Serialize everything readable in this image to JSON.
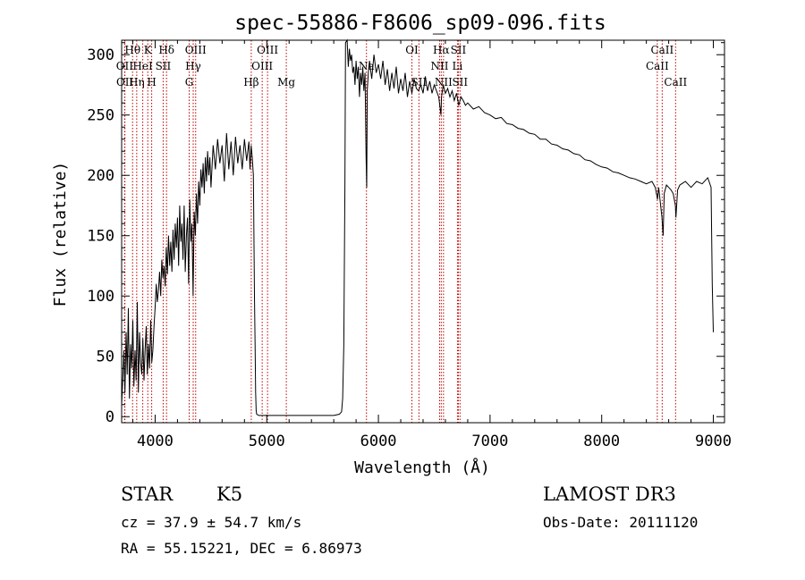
{
  "chart_data": {
    "type": "line",
    "title": "spec-55886-F8606_sp09-096.fits",
    "xlabel": "Wavelength (Å)",
    "ylabel": "Flux (relative)",
    "xlim": [
      3700,
      9100
    ],
    "ylim": [
      -5,
      312
    ],
    "xticks": [
      4000,
      5000,
      6000,
      7000,
      8000,
      9000
    ],
    "yticks": [
      0,
      50,
      100,
      150,
      200,
      250,
      300
    ],
    "series": [
      {
        "name": "flux",
        "points": [
          [
            3700,
            10
          ],
          [
            3710,
            30
          ],
          [
            3720,
            55
          ],
          [
            3730,
            20
          ],
          [
            3740,
            70
          ],
          [
            3750,
            35
          ],
          [
            3760,
            90
          ],
          [
            3770,
            15
          ],
          [
            3780,
            60
          ],
          [
            3790,
            40
          ],
          [
            3800,
            80
          ],
          [
            3810,
            25
          ],
          [
            3820,
            55
          ],
          [
            3830,
            30
          ],
          [
            3840,
            95
          ],
          [
            3850,
            20
          ],
          [
            3860,
            70
          ],
          [
            3870,
            45
          ],
          [
            3880,
            35
          ],
          [
            3890,
            65
          ],
          [
            3900,
            30
          ],
          [
            3910,
            55
          ],
          [
            3920,
            75
          ],
          [
            3930,
            35
          ],
          [
            3940,
            60
          ],
          [
            3950,
            40
          ],
          [
            3960,
            80
          ],
          [
            3970,
            45
          ],
          [
            3980,
            55
          ],
          [
            3990,
            75
          ],
          [
            4000,
            90
          ],
          [
            4010,
            110
          ],
          [
            4020,
            95
          ],
          [
            4030,
            105
          ],
          [
            4040,
            120
          ],
          [
            4050,
            100
          ],
          [
            4060,
            130
          ],
          [
            4070,
            115
          ],
          [
            4080,
            125
          ],
          [
            4090,
            108
          ],
          [
            4100,
            140
          ],
          [
            4110,
            118
          ],
          [
            4120,
            150
          ],
          [
            4130,
            125
          ],
          [
            4140,
            145
          ],
          [
            4150,
            120
          ],
          [
            4160,
            155
          ],
          [
            4170,
            130
          ],
          [
            4180,
            160
          ],
          [
            4190,
            140
          ],
          [
            4200,
            165
          ],
          [
            4210,
            125
          ],
          [
            4220,
            175
          ],
          [
            4230,
            145
          ],
          [
            4240,
            160
          ],
          [
            4250,
            130
          ],
          [
            4260,
            175
          ],
          [
            4270,
            120
          ],
          [
            4280,
            150
          ],
          [
            4290,
            165
          ],
          [
            4300,
            110
          ],
          [
            4310,
            180
          ],
          [
            4320,
            145
          ],
          [
            4330,
            160
          ],
          [
            4340,
            100
          ],
          [
            4350,
            170
          ],
          [
            4360,
            150
          ],
          [
            4370,
            185
          ],
          [
            4380,
            160
          ],
          [
            4390,
            195
          ],
          [
            4400,
            175
          ],
          [
            4410,
            205
          ],
          [
            4420,
            190
          ],
          [
            4430,
            210
          ],
          [
            4440,
            185
          ],
          [
            4450,
            215
          ],
          [
            4460,
            195
          ],
          [
            4470,
            220
          ],
          [
            4480,
            200
          ],
          [
            4490,
            215
          ],
          [
            4500,
            190
          ],
          [
            4520,
            225
          ],
          [
            4540,
            205
          ],
          [
            4560,
            230
          ],
          [
            4580,
            210
          ],
          [
            4600,
            225
          ],
          [
            4620,
            195
          ],
          [
            4640,
            235
          ],
          [
            4660,
            205
          ],
          [
            4680,
            228
          ],
          [
            4700,
            200
          ],
          [
            4720,
            232
          ],
          [
            4740,
            210
          ],
          [
            4760,
            225
          ],
          [
            4780,
            205
          ],
          [
            4800,
            230
          ],
          [
            4820,
            212
          ],
          [
            4840,
            228
          ],
          [
            4850,
            205
          ],
          [
            4860,
            225
          ],
          [
            4870,
            215
          ],
          [
            4880,
            200
          ],
          [
            4885,
            150
          ],
          [
            4890,
            100
          ],
          [
            4895,
            60
          ],
          [
            4900,
            20
          ],
          [
            4905,
            5
          ],
          [
            4910,
            2
          ],
          [
            4930,
            1
          ],
          [
            5000,
            1
          ],
          [
            5100,
            1
          ],
          [
            5200,
            1
          ],
          [
            5300,
            1
          ],
          [
            5400,
            1
          ],
          [
            5500,
            1
          ],
          [
            5600,
            1
          ],
          [
            5650,
            2
          ],
          [
            5670,
            4
          ],
          [
            5680,
            15
          ],
          [
            5690,
            60
          ],
          [
            5700,
            190
          ],
          [
            5705,
            310
          ],
          [
            5720,
            312
          ],
          [
            5730,
            290
          ],
          [
            5740,
            305
          ],
          [
            5750,
            295
          ],
          [
            5760,
            300
          ],
          [
            5770,
            285
          ],
          [
            5780,
            290
          ],
          [
            5790,
            275
          ],
          [
            5800,
            295
          ],
          [
            5810,
            280
          ],
          [
            5820,
            290
          ],
          [
            5830,
            265
          ],
          [
            5840,
            285
          ],
          [
            5850,
            275
          ],
          [
            5860,
            290
          ],
          [
            5870,
            270
          ],
          [
            5880,
            285
          ],
          [
            5890,
            215
          ],
          [
            5895,
            190
          ],
          [
            5900,
            270
          ],
          [
            5910,
            285
          ],
          [
            5920,
            295
          ],
          [
            5940,
            280
          ],
          [
            5960,
            300
          ],
          [
            5980,
            285
          ],
          [
            6000,
            292
          ],
          [
            6020,
            280
          ],
          [
            6040,
            295
          ],
          [
            6060,
            275
          ],
          [
            6080,
            288
          ],
          [
            6100,
            270
          ],
          [
            6120,
            285
          ],
          [
            6140,
            272
          ],
          [
            6160,
            290
          ],
          [
            6180,
            268
          ],
          [
            6200,
            280
          ],
          [
            6220,
            270
          ],
          [
            6240,
            285
          ],
          [
            6260,
            265
          ],
          [
            6280,
            278
          ],
          [
            6300,
            268
          ],
          [
            6320,
            280
          ],
          [
            6340,
            272
          ],
          [
            6360,
            270
          ],
          [
            6380,
            275
          ],
          [
            6400,
            268
          ],
          [
            6420,
            282
          ],
          [
            6440,
            270
          ],
          [
            6460,
            278
          ],
          [
            6480,
            268
          ],
          [
            6500,
            275
          ],
          [
            6520,
            270
          ],
          [
            6540,
            265
          ],
          [
            6560,
            250
          ],
          [
            6565,
            265
          ],
          [
            6580,
            275
          ],
          [
            6600,
            268
          ],
          [
            6620,
            272
          ],
          [
            6640,
            265
          ],
          [
            6660,
            270
          ],
          [
            6680,
            262
          ],
          [
            6700,
            268
          ],
          [
            6720,
            258
          ],
          [
            6740,
            265
          ],
          [
            6760,
            262
          ],
          [
            6780,
            258
          ],
          [
            6800,
            260
          ],
          [
            6850,
            255
          ],
          [
            6900,
            257
          ],
          [
            6950,
            252
          ],
          [
            7000,
            250
          ],
          [
            7050,
            247
          ],
          [
            7100,
            248
          ],
          [
            7150,
            243
          ],
          [
            7200,
            242
          ],
          [
            7250,
            239
          ],
          [
            7300,
            238
          ],
          [
            7350,
            235
          ],
          [
            7400,
            234
          ],
          [
            7450,
            230
          ],
          [
            7500,
            230
          ],
          [
            7550,
            226
          ],
          [
            7600,
            225
          ],
          [
            7650,
            222
          ],
          [
            7700,
            221
          ],
          [
            7750,
            218
          ],
          [
            7800,
            217
          ],
          [
            7850,
            213
          ],
          [
            7900,
            212
          ],
          [
            7950,
            209
          ],
          [
            8000,
            207
          ],
          [
            8050,
            206
          ],
          [
            8100,
            203
          ],
          [
            8150,
            202
          ],
          [
            8200,
            200
          ],
          [
            8250,
            198
          ],
          [
            8300,
            197
          ],
          [
            8350,
            195
          ],
          [
            8400,
            193
          ],
          [
            8450,
            195
          ],
          [
            8480,
            190
          ],
          [
            8500,
            180
          ],
          [
            8510,
            190
          ],
          [
            8540,
            165
          ],
          [
            8550,
            150
          ],
          [
            8560,
            185
          ],
          [
            8580,
            192
          ],
          [
            8600,
            190
          ],
          [
            8620,
            188
          ],
          [
            8640,
            185
          ],
          [
            8660,
            175
          ],
          [
            8665,
            165
          ],
          [
            8680,
            188
          ],
          [
            8700,
            192
          ],
          [
            8750,
            195
          ],
          [
            8800,
            190
          ],
          [
            8850,
            195
          ],
          [
            8900,
            193
          ],
          [
            8950,
            198
          ],
          [
            8980,
            190
          ],
          [
            8990,
            110
          ],
          [
            9000,
            70
          ]
        ]
      }
    ],
    "line_markers": [
      {
        "name": "Hθ",
        "wavelength": 3798,
        "label_row": 0
      },
      {
        "name": "OII",
        "wavelength": 3727,
        "label_row": 1
      },
      {
        "name": "OII",
        "wavelength": 3729,
        "label_row": 2
      },
      {
        "name": "Hη",
        "wavelength": 3835,
        "label_row": 2
      },
      {
        "name": "HeI",
        "wavelength": 3889,
        "label_row": 1
      },
      {
        "name": "K",
        "wavelength": 3934,
        "label_row": 0
      },
      {
        "name": "H",
        "wavelength": 3969,
        "label_row": 2
      },
      {
        "name": "SII",
        "wavelength": 4072,
        "label_row": 1
      },
      {
        "name": "Hδ",
        "wavelength": 4102,
        "label_row": 0
      },
      {
        "name": "G",
        "wavelength": 4305,
        "label_row": 2
      },
      {
        "name": "Hγ",
        "wavelength": 4341,
        "label_row": 1
      },
      {
        "name": "OIII",
        "wavelength": 4363,
        "label_row": 0
      },
      {
        "name": "Hβ",
        "wavelength": 4861,
        "label_row": 2
      },
      {
        "name": "OIII",
        "wavelength": 4959,
        "label_row": 1
      },
      {
        "name": "OIII",
        "wavelength": 5007,
        "label_row": 0
      },
      {
        "name": "Mg",
        "wavelength": 5175,
        "label_row": 2
      },
      {
        "name": "Na",
        "wavelength": 5893,
        "label_row": 1
      },
      {
        "name": "OI",
        "wavelength": 6300,
        "label_row": 0
      },
      {
        "name": "SII",
        "wavelength": 6363,
        "label_row": 2
      },
      {
        "name": "NII",
        "wavelength": 6548,
        "label_row": 1
      },
      {
        "name": "Hα",
        "wavelength": 6563,
        "label_row": 0
      },
      {
        "name": "NII",
        "wavelength": 6583,
        "label_row": 2
      },
      {
        "name": "SII",
        "wavelength": 6716,
        "label_row": 0
      },
      {
        "name": "Li",
        "wavelength": 6708,
        "label_row": 1
      },
      {
        "name": "SII",
        "wavelength": 6731,
        "label_row": 2
      },
      {
        "name": "CaII",
        "wavelength": 8498,
        "label_row": 1
      },
      {
        "name": "CaII",
        "wavelength": 8542,
        "label_row": 0
      },
      {
        "name": "CaII",
        "wavelength": 8662,
        "label_row": 2
      }
    ],
    "colors": {
      "flux": "#000000",
      "markers": "#c00000"
    }
  },
  "info": {
    "object_class": "STAR",
    "subclass": "K5",
    "survey": "LAMOST DR3",
    "cz": "cz = 37.9 ± 54.7 km/s",
    "obs_date": "Obs-Date: 20111120",
    "coords": "RA =  55.15221, DEC =   6.86973"
  }
}
